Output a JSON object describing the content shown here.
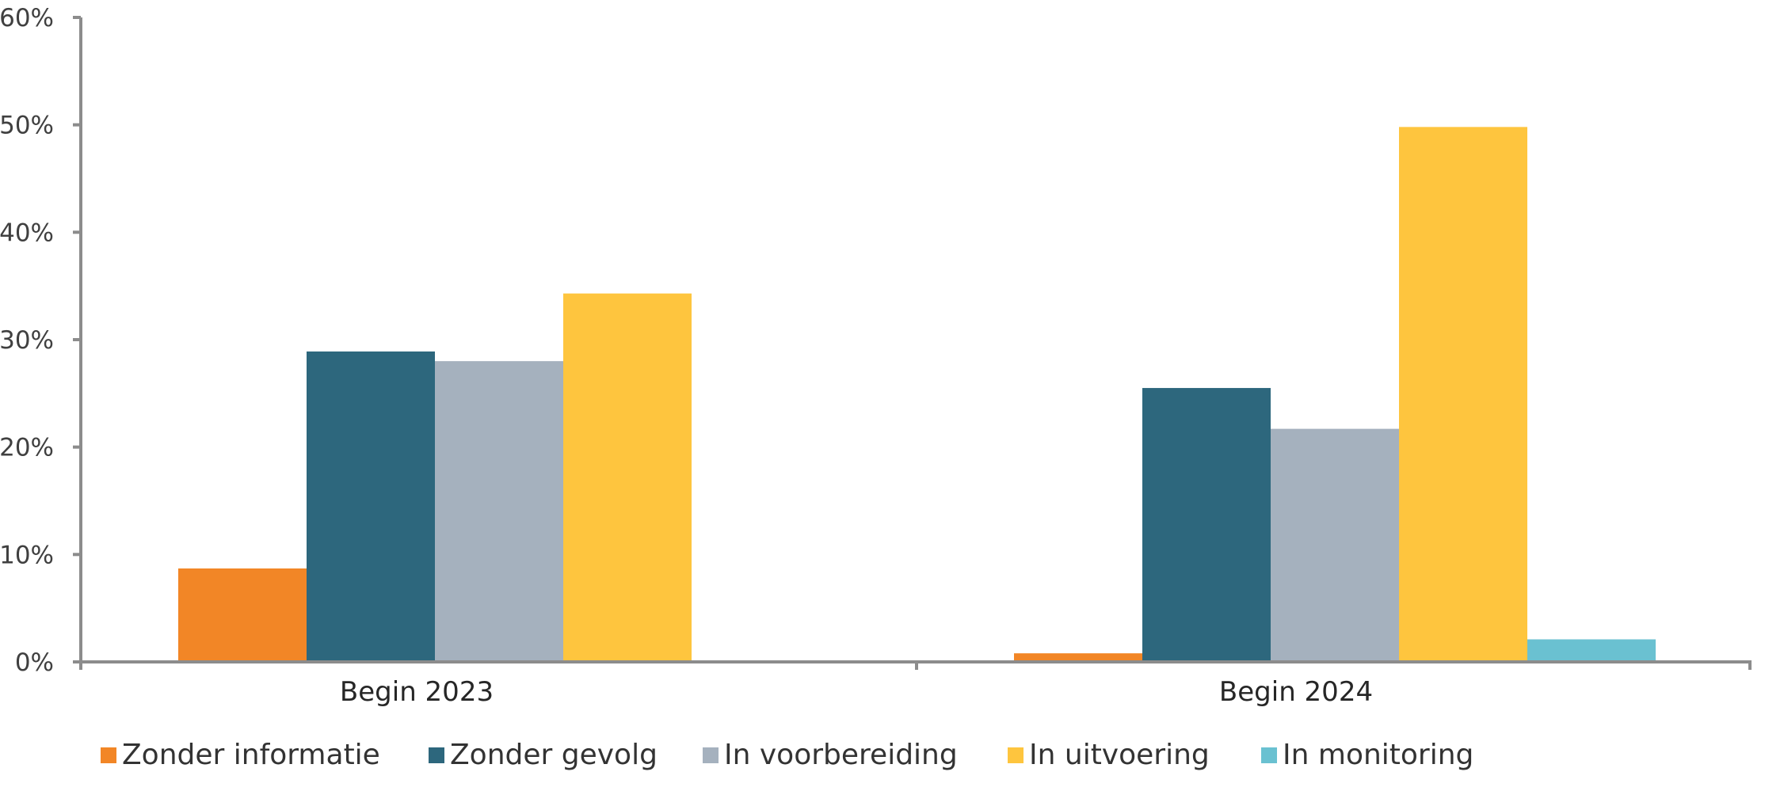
{
  "chart_data": {
    "type": "bar",
    "categories": [
      "Begin 2023",
      "Begin 2024"
    ],
    "series": [
      {
        "name": "Zonder informatie",
        "values": [
          8.7,
          0.8
        ],
        "color": "#F28626"
      },
      {
        "name": "Zonder gevolg",
        "values": [
          28.9,
          25.5
        ],
        "color": "#2D677D"
      },
      {
        "name": "In voorbereiding",
        "values": [
          28.0,
          21.7
        ],
        "color": "#A5B1BE"
      },
      {
        "name": "In uitvoering",
        "values": [
          34.3,
          49.8
        ],
        "color": "#FEC53E"
      },
      {
        "name": "In monitoring",
        "values": [
          0,
          2.1
        ],
        "color": "#6AC1D1"
      }
    ],
    "yticks": [
      "0%",
      "10%",
      "20%",
      "30%",
      "40%",
      "50%",
      "60%"
    ],
    "ylim": [
      0,
      60
    ],
    "title": "",
    "xlabel": "",
    "ylabel": "",
    "grid": false,
    "legend": "bottom"
  }
}
